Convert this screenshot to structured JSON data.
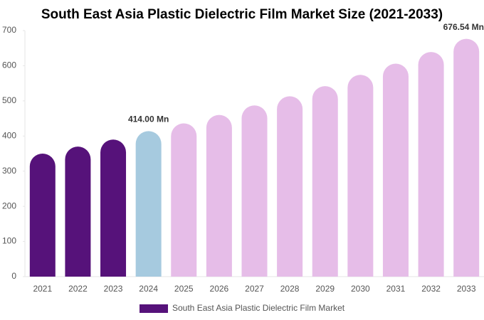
{
  "chart_data": {
    "type": "bar",
    "title": "South East Asia Plastic Dielectric Film Market Size (2021-2033)",
    "categories": [
      "2021",
      "2022",
      "2023",
      "2024",
      "2025",
      "2026",
      "2027",
      "2028",
      "2029",
      "2030",
      "2031",
      "2032",
      "2033"
    ],
    "series": [
      {
        "name": "South East Asia Plastic Dielectric Film Market",
        "color": "#56127a",
        "values": [
          350,
          370,
          390,
          414,
          436,
          460,
          487,
          513,
          542,
          574,
          606,
          639,
          676.54
        ],
        "value_labels": [
          null,
          null,
          null,
          "414.00 Mn",
          null,
          null,
          null,
          null,
          null,
          null,
          null,
          null,
          "676.54 Mn"
        ],
        "bar_colors": [
          "#56127a",
          "#56127a",
          "#56127a",
          "#a6cadf",
          "#e6bde8",
          "#e6bde8",
          "#e6bde8",
          "#e6bde8",
          "#e6bde8",
          "#e6bde8",
          "#e6bde8",
          "#e6bde8",
          "#e6bde8"
        ]
      }
    ],
    "ylim": [
      0,
      700
    ],
    "yticks": [
      0,
      100,
      200,
      300,
      400,
      500,
      600,
      700
    ],
    "legend": "bottom"
  }
}
